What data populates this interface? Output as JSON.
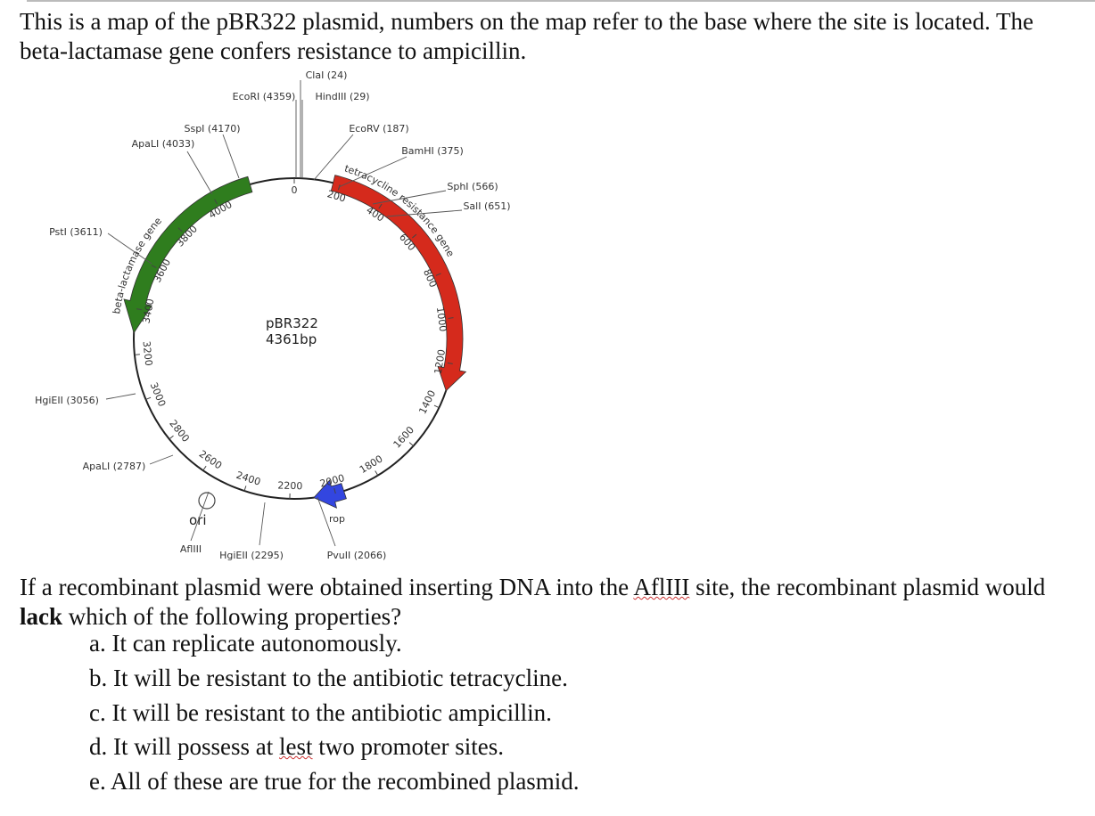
{
  "intro": "This is a map of the pBR322 plasmid, numbers on the map refer to the base where the site is located.  The beta-lactamase gene confers resistance to ampicillin.",
  "map": {
    "name": "pBR322",
    "size": "4361bp",
    "ticks": [
      0,
      200,
      400,
      600,
      800,
      1000,
      1200,
      1400,
      1600,
      1800,
      2000,
      2200,
      2400,
      2600,
      2800,
      3000,
      3200,
      3400,
      3600,
      3800,
      4000
    ],
    "sites": [
      "ClaI (24)",
      "EcoRI (4359)",
      "HindIII (29)",
      "EcoRV (187)",
      "BamHI (375)",
      "SphI (566)",
      "SalI (651)",
      "SspI (4170)",
      "ApaLI (4033)",
      "PstI (3611)",
      "HgiEII (3056)",
      "ApaLI (2787)",
      "AflIII",
      "HgiEII (2295)",
      "PvuII (2066)"
    ],
    "genes": {
      "bla": "beta-lactamase gene",
      "tet": "tetracycline resistance gene",
      "rop": "rop"
    },
    "ori": "ori"
  },
  "question": {
    "parts": [
      "If a recombinant plasmid were obtained inserting DNA into the ",
      "AflIII",
      " site, the recombinant plasmid would ",
      "lack",
      " which of the following properties?"
    ],
    "options": [
      [
        "a. It can replicate autonomously."
      ],
      [
        "b. It will be resistant to the antibiotic tetracycline."
      ],
      [
        "c. It will be resistant to the antibiotic ampicillin."
      ],
      [
        "d. It will possess at ",
        "lest",
        " two promoter sites."
      ],
      [
        "e. All of these are true for the recombined plasmid."
      ]
    ]
  }
}
